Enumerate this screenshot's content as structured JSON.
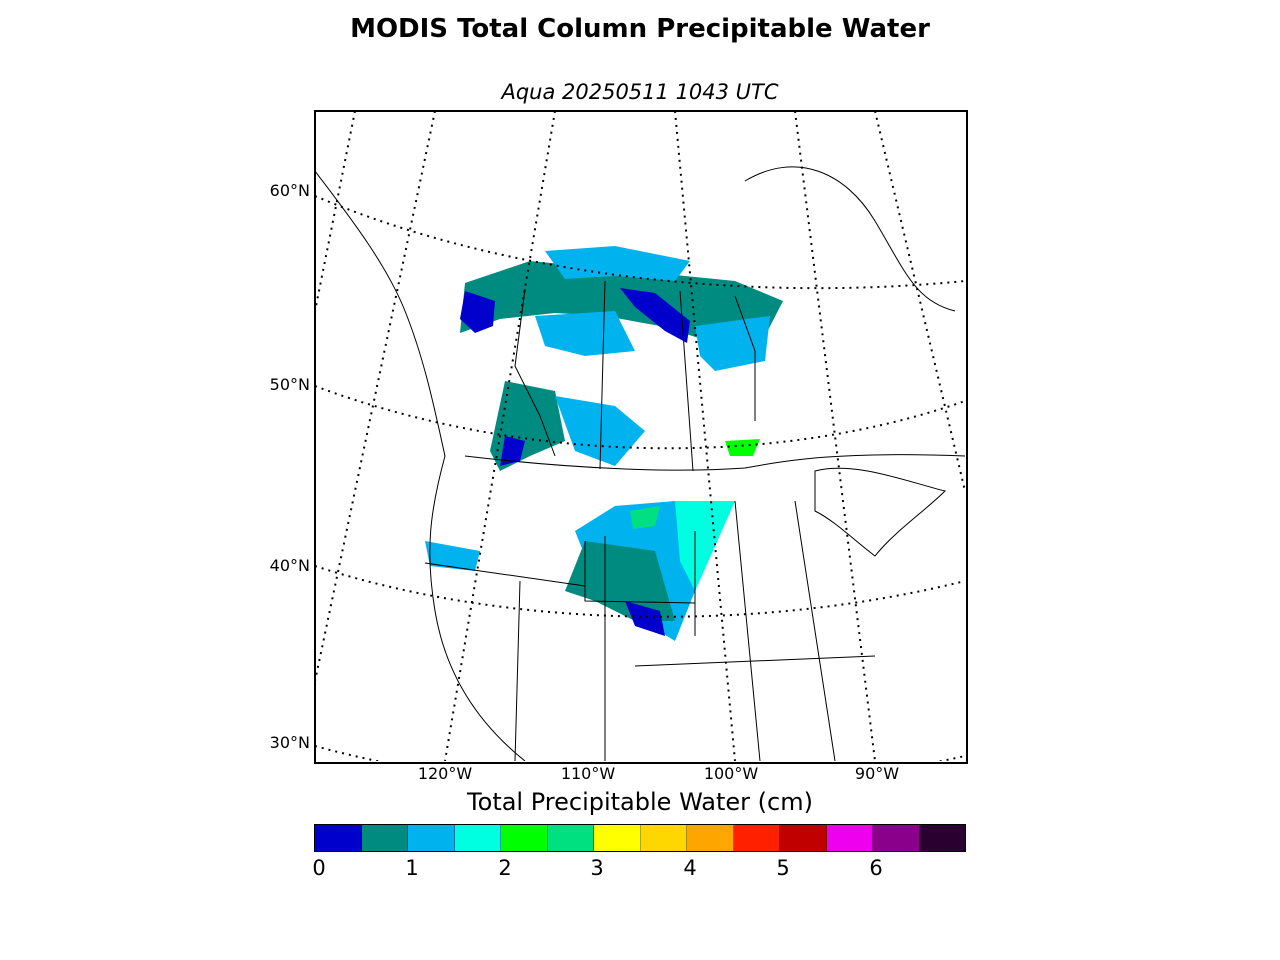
{
  "title": "MODIS Total Column Precipitable Water",
  "subtitle": "Aqua 20250511 1043 UTC",
  "map": {
    "lat_labels": [
      "60°N",
      "50°N",
      "40°N",
      "30°N"
    ],
    "lon_labels": [
      "120°W",
      "110°W",
      "100°W",
      "90°W"
    ],
    "graticule": "dotted",
    "legend_placement": "bottom"
  },
  "colorbar": {
    "label": "Total Precipitable Water (cm)",
    "ticks": [
      "0",
      "1",
      "2",
      "3",
      "4",
      "5",
      "6"
    ],
    "colors": [
      "#0000cd",
      "#008b80",
      "#00b2ee",
      "#00ffe0",
      "#00ff00",
      "#00e080",
      "#ffff00",
      "#ffd700",
      "#ffa500",
      "#ff2000",
      "#c00000",
      "#ee00ee",
      "#8b008b",
      "#2a0030"
    ]
  }
}
